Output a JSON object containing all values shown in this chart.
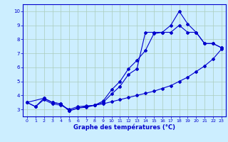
{
  "xlabel": "Graphe des températures (°C)",
  "background_color": "#cceeff",
  "grid_color": "#aaccbb",
  "line_color": "#0000cc",
  "xlim": [
    -0.5,
    23.5
  ],
  "ylim": [
    2.5,
    10.5
  ],
  "yticks": [
    3,
    4,
    5,
    6,
    7,
    8,
    9,
    10
  ],
  "xticks": [
    0,
    1,
    2,
    3,
    4,
    5,
    6,
    7,
    8,
    9,
    10,
    11,
    12,
    13,
    14,
    15,
    16,
    17,
    18,
    19,
    20,
    21,
    22,
    23
  ],
  "line1_x": [
    0,
    1,
    2,
    3,
    4,
    5,
    6,
    7,
    8,
    9,
    10,
    11,
    12,
    13,
    14,
    15,
    16,
    17,
    18,
    19,
    20,
    21,
    22,
    23
  ],
  "line1_y": [
    3.5,
    3.2,
    3.7,
    3.4,
    3.3,
    3.0,
    3.2,
    3.25,
    3.3,
    3.4,
    3.55,
    3.7,
    3.85,
    4.0,
    4.15,
    4.3,
    4.5,
    4.7,
    5.0,
    5.3,
    5.7,
    6.1,
    6.6,
    7.3
  ],
  "line2_x": [
    0,
    1,
    2,
    3,
    4,
    5,
    6,
    7,
    8,
    9,
    10,
    11,
    12,
    13,
    14,
    15,
    16,
    17,
    18,
    19,
    20,
    21,
    22,
    23
  ],
  "line2_y": [
    3.5,
    3.2,
    3.8,
    3.5,
    3.4,
    2.9,
    3.1,
    3.15,
    3.3,
    3.6,
    4.4,
    5.0,
    5.9,
    6.5,
    7.2,
    8.4,
    8.5,
    9.0,
    10.0,
    9.1,
    8.5,
    7.7,
    7.7,
    7.4
  ],
  "line3_x": [
    0,
    2,
    3,
    4,
    5,
    6,
    7,
    8,
    9,
    10,
    11,
    12,
    13,
    14,
    15,
    16,
    17,
    18,
    19,
    20,
    21,
    22,
    23
  ],
  "line3_y": [
    3.5,
    3.8,
    3.5,
    3.4,
    2.9,
    3.1,
    3.2,
    3.3,
    3.5,
    4.1,
    4.65,
    5.5,
    5.9,
    8.5,
    8.5,
    8.5,
    8.5,
    9.0,
    8.5,
    8.5,
    7.7,
    7.7,
    7.4
  ]
}
